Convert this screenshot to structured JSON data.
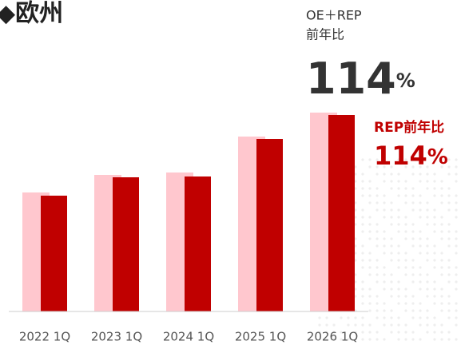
{
  "chart_data": {
    "type": "bar",
    "title": "◆欧州",
    "categories": [
      "2022 1Q",
      "2023 1Q",
      "2024 1Q",
      "2025 1Q",
      "2026 1Q"
    ],
    "series": [
      {
        "color": "#ffc7ce",
        "values": [
          149,
          171,
          174,
          219,
          249
        ]
      },
      {
        "color": "#c00000",
        "values": [
          145,
          168,
          169,
          216,
          246
        ]
      }
    ],
    "ylim": [
      0,
      250
    ],
    "annotations": {
      "total_label_1": "OE＋REP",
      "total_label_2": "前年比",
      "total_value": "114",
      "total_unit": "%",
      "rep_label": "REP前年比",
      "rep_value": "114",
      "rep_unit": "%"
    }
  }
}
